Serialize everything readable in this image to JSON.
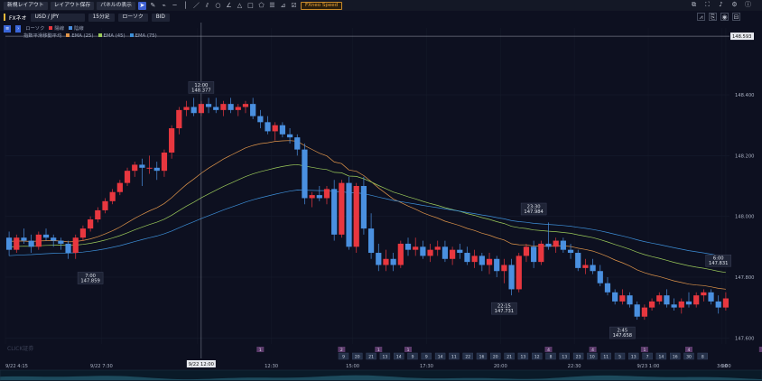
{
  "toolbar": {
    "new_layout": "新規レイアウト",
    "save_layout": "レイアウト保存",
    "panel_display": "パネルの表示",
    "fxneo_speed": "FXneo Speed",
    "tools": [
      "cursor-icon",
      "pen-icon",
      "brush-icon",
      "hline-icon",
      "vline-icon",
      "trendline-icon",
      "channel-icon",
      "circle-icon",
      "angle-icon",
      "triangle-icon",
      "rectangle-icon",
      "polygon-icon",
      "lines-icon",
      "fibo-icon",
      "checkbox-icon"
    ]
  },
  "right_icons": [
    "layout-icon",
    "fullscreen-icon",
    "bell-icon",
    "gear-icon",
    "info-icon"
  ],
  "symbol_bar": {
    "brand": "FXネオ",
    "pair": "USD / JPY",
    "timeframe": "15分足",
    "chart_type": "ローソク",
    "price_type": "BID"
  },
  "legend": {
    "main": "ローソク",
    "up_label": "陽線",
    "down_label": "陰線",
    "ma_title": "指数平滑移動平均",
    "ema": [
      {
        "label": "EMA (25)",
        "color": "#e0954a"
      },
      {
        "label": "EMA (45)",
        "color": "#9ccb5a"
      },
      {
        "label": "EMA (75)",
        "color": "#3d8fd8"
      }
    ],
    "up_color": "#e8373f",
    "down_color": "#4a90e0"
  },
  "current_price": "148.593",
  "chart_data": {
    "type": "candlestick",
    "y_ticks": [
      148.4,
      148.2,
      148.0,
      147.8,
      147.6
    ],
    "ylim": [
      147.58,
      148.62
    ],
    "x_ticks": [
      "9/22 4:15",
      "9/22 7:30",
      "10:00",
      "12:30",
      "15:00",
      "17:30",
      "20:00",
      "22:30",
      "9/23 1:00",
      "3:30",
      "6:00"
    ],
    "crosshair_x_label": "9/22 12:00",
    "annotations": [
      {
        "time": "7:00",
        "price": "147.859"
      },
      {
        "time": "12:00",
        "price": "148.377"
      },
      {
        "time": "23:30",
        "price": "147.984"
      },
      {
        "time": "22:15",
        "price": "147.731"
      },
      {
        "time": "2:45",
        "price": "147.658"
      },
      {
        "time": "6:00",
        "price": "147.831"
      }
    ],
    "events_top": [
      "1",
      "2",
      "1",
      "1",
      "4",
      "4",
      "1",
      "4",
      "1"
    ],
    "events_bottom": [
      "9",
      "20",
      "21",
      "13",
      "14",
      "9",
      "9",
      "14",
      "11",
      "22",
      "16",
      "20",
      "21",
      "13",
      "12",
      "8",
      "13",
      "23",
      "10",
      "11",
      "5",
      "13",
      "7",
      "14",
      "16",
      "30",
      "8"
    ],
    "logo": "CLICK証券",
    "candles": [
      [
        147.93,
        147.95,
        147.87,
        147.89
      ],
      [
        147.89,
        147.94,
        147.88,
        147.93
      ],
      [
        147.93,
        147.96,
        147.91,
        147.92
      ],
      [
        147.92,
        147.94,
        147.88,
        147.9
      ],
      [
        147.9,
        147.95,
        147.89,
        147.94
      ],
      [
        147.94,
        147.96,
        147.92,
        147.93
      ],
      [
        147.93,
        147.94,
        147.9,
        147.92
      ],
      [
        147.92,
        147.93,
        147.89,
        147.91
      ],
      [
        147.91,
        147.92,
        147.86,
        147.88
      ],
      [
        147.88,
        147.94,
        147.86,
        147.93
      ],
      [
        147.93,
        147.97,
        147.92,
        147.96
      ],
      [
        147.96,
        148.0,
        147.95,
        147.99
      ],
      [
        147.99,
        148.03,
        147.98,
        148.02
      ],
      [
        148.02,
        148.06,
        148.01,
        148.05
      ],
      [
        148.05,
        148.09,
        148.04,
        148.08
      ],
      [
        148.08,
        148.12,
        148.07,
        148.11
      ],
      [
        148.11,
        148.16,
        148.1,
        148.15
      ],
      [
        148.15,
        148.18,
        148.13,
        148.17
      ],
      [
        148.17,
        148.19,
        148.1,
        148.16
      ],
      [
        148.16,
        148.2,
        148.14,
        148.16
      ],
      [
        148.16,
        148.18,
        148.12,
        148.15
      ],
      [
        148.15,
        148.22,
        148.13,
        148.21
      ],
      [
        148.21,
        148.3,
        148.19,
        148.29
      ],
      [
        148.29,
        148.36,
        148.27,
        148.35
      ],
      [
        148.35,
        148.38,
        148.33,
        148.36
      ],
      [
        148.36,
        148.39,
        148.33,
        148.34
      ],
      [
        148.34,
        148.38,
        148.33,
        148.37
      ],
      [
        148.37,
        148.39,
        148.34,
        148.36
      ],
      [
        148.36,
        148.39,
        148.34,
        148.35
      ],
      [
        148.35,
        148.38,
        148.33,
        148.37
      ],
      [
        148.37,
        148.39,
        148.34,
        148.35
      ],
      [
        148.35,
        148.37,
        148.33,
        148.36
      ],
      [
        148.36,
        148.38,
        148.34,
        148.37
      ],
      [
        148.37,
        148.39,
        148.32,
        148.33
      ],
      [
        148.33,
        148.35,
        148.29,
        148.31
      ],
      [
        148.31,
        148.33,
        148.27,
        148.28
      ],
      [
        148.28,
        148.31,
        148.25,
        148.3
      ],
      [
        148.3,
        148.31,
        148.26,
        148.27
      ],
      [
        148.27,
        148.29,
        148.24,
        148.26
      ],
      [
        148.26,
        148.27,
        148.2,
        148.22
      ],
      [
        148.22,
        148.24,
        148.04,
        148.06
      ],
      [
        148.06,
        148.08,
        148.03,
        148.07
      ],
      [
        148.07,
        148.1,
        148.05,
        148.06
      ],
      [
        148.06,
        148.1,
        148.04,
        148.09
      ],
      [
        148.09,
        148.12,
        147.92,
        147.94
      ],
      [
        147.94,
        148.12,
        147.93,
        148.11
      ],
      [
        148.11,
        148.13,
        147.89,
        147.9
      ],
      [
        147.9,
        148.11,
        147.88,
        148.1
      ],
      [
        148.1,
        148.13,
        147.94,
        147.96
      ],
      [
        147.96,
        148.01,
        147.86,
        147.88
      ],
      [
        147.88,
        147.91,
        147.82,
        147.84
      ],
      [
        147.84,
        147.89,
        147.82,
        147.86
      ],
      [
        147.86,
        147.88,
        147.82,
        147.84
      ],
      [
        147.84,
        147.92,
        147.83,
        147.91
      ],
      [
        147.91,
        147.93,
        147.87,
        147.89
      ],
      [
        147.89,
        147.93,
        147.87,
        147.9
      ],
      [
        147.9,
        147.92,
        147.86,
        147.87
      ],
      [
        147.87,
        147.91,
        147.85,
        147.89
      ],
      [
        147.89,
        147.92,
        147.87,
        147.9
      ],
      [
        147.9,
        147.92,
        147.85,
        147.86
      ],
      [
        147.86,
        147.9,
        147.84,
        147.89
      ],
      [
        147.89,
        147.91,
        147.86,
        147.88
      ],
      [
        147.88,
        147.9,
        147.84,
        147.85
      ],
      [
        147.85,
        147.89,
        147.83,
        147.87
      ],
      [
        147.87,
        147.88,
        147.82,
        147.84
      ],
      [
        147.84,
        147.88,
        147.81,
        147.86
      ],
      [
        147.86,
        147.87,
        147.8,
        147.82
      ],
      [
        147.82,
        147.86,
        147.78,
        147.84
      ],
      [
        147.84,
        147.86,
        147.74,
        147.76
      ],
      [
        147.76,
        147.88,
        147.75,
        147.87
      ],
      [
        147.87,
        147.91,
        147.85,
        147.9
      ],
      [
        147.9,
        147.92,
        147.83,
        147.85
      ],
      [
        147.85,
        147.92,
        147.84,
        147.91
      ],
      [
        147.91,
        147.98,
        147.89,
        147.9
      ],
      [
        147.9,
        147.93,
        147.88,
        147.92
      ],
      [
        147.92,
        147.93,
        147.88,
        147.89
      ],
      [
        147.89,
        147.91,
        147.86,
        147.88
      ],
      [
        147.88,
        147.89,
        147.82,
        147.83
      ],
      [
        147.83,
        147.86,
        147.81,
        147.84
      ],
      [
        147.84,
        147.86,
        147.81,
        147.82
      ],
      [
        147.82,
        147.84,
        147.77,
        147.78
      ],
      [
        147.78,
        147.8,
        147.74,
        147.75
      ],
      [
        147.75,
        147.76,
        147.71,
        147.72
      ],
      [
        147.72,
        147.76,
        147.71,
        147.74
      ],
      [
        147.74,
        147.75,
        147.7,
        147.71
      ],
      [
        147.71,
        147.72,
        147.66,
        147.67
      ],
      [
        147.67,
        147.71,
        147.66,
        147.7
      ],
      [
        147.7,
        147.73,
        147.69,
        147.72
      ],
      [
        147.72,
        147.75,
        147.71,
        147.74
      ],
      [
        147.74,
        147.76,
        147.7,
        147.71
      ],
      [
        147.71,
        147.73,
        147.69,
        147.7
      ],
      [
        147.7,
        147.73,
        147.68,
        147.72
      ],
      [
        147.72,
        147.75,
        147.7,
        147.71
      ],
      [
        147.71,
        147.75,
        147.7,
        147.74
      ],
      [
        147.74,
        147.76,
        147.72,
        147.75
      ],
      [
        147.75,
        147.76,
        147.71,
        147.72
      ],
      [
        147.72,
        147.74,
        147.68,
        147.7
      ],
      [
        147.7,
        147.75,
        147.69,
        147.73
      ]
    ]
  }
}
